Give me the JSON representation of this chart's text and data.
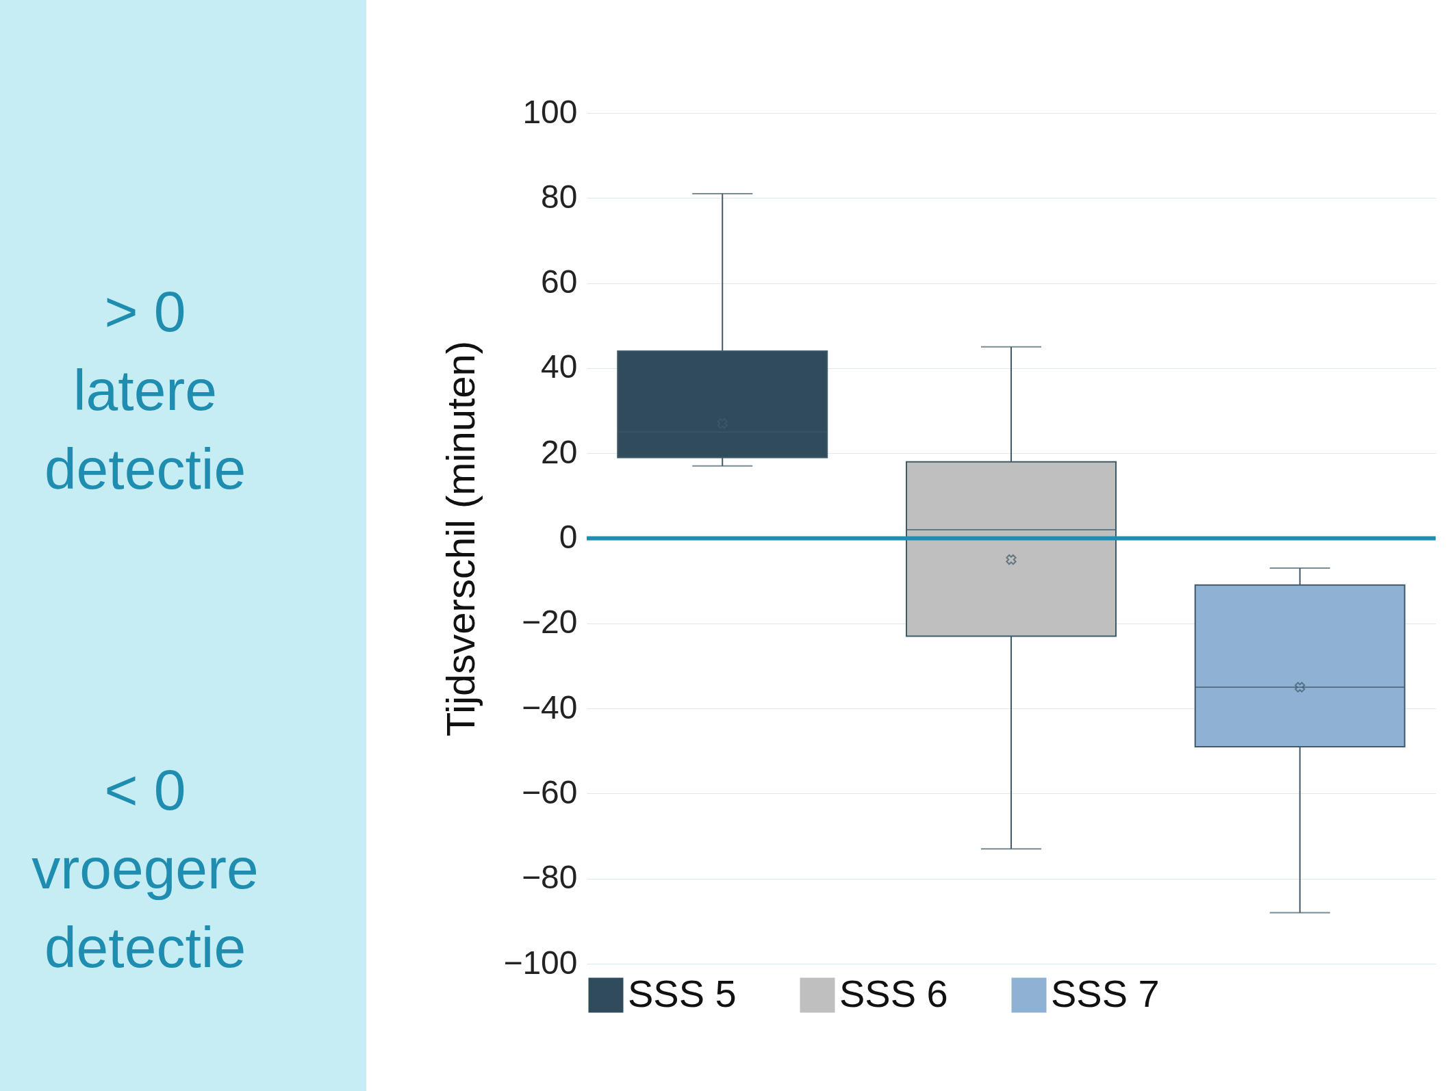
{
  "chart_data": {
    "type": "box",
    "ylabel": "Tijdsverschil (minuten)",
    "categories": [
      null,
      null,
      null
    ],
    "series": [
      {
        "name": "SSS 5",
        "color": "#2f4b5c",
        "boxes": [
          {
            "low": 17,
            "q1": 19,
            "median": 25,
            "q3": 44,
            "high": 81,
            "mean": 27
          },
          null,
          null
        ]
      },
      {
        "name": "SSS 6",
        "color": "#bfbfbf",
        "boxes": [
          null,
          {
            "low": -73,
            "q1": -23,
            "median": 2,
            "q3": 18,
            "high": 45,
            "mean": -5
          },
          null
        ]
      },
      {
        "name": "SSS 7",
        "color": "#8fb1d3",
        "boxes": [
          null,
          null,
          {
            "low": -88,
            "q1": -49,
            "median": -35,
            "q3": -11,
            "high": -7,
            "mean": -35
          }
        ]
      }
    ],
    "ylim": [
      -100,
      100
    ],
    "yticks": [
      -100,
      -80,
      -60,
      -40,
      -20,
      0,
      20,
      40,
      60,
      80,
      100
    ],
    "grid": "y",
    "legend": "bottom",
    "tick_labels": "y",
    "ref_lines": [
      {
        "axis": "y",
        "value": 0,
        "color": "#1f8db0"
      }
    ],
    "annotations": [
      "> 0\nlatere\ndetectie",
      "< 0\nvroegere\ndetectie"
    ]
  }
}
